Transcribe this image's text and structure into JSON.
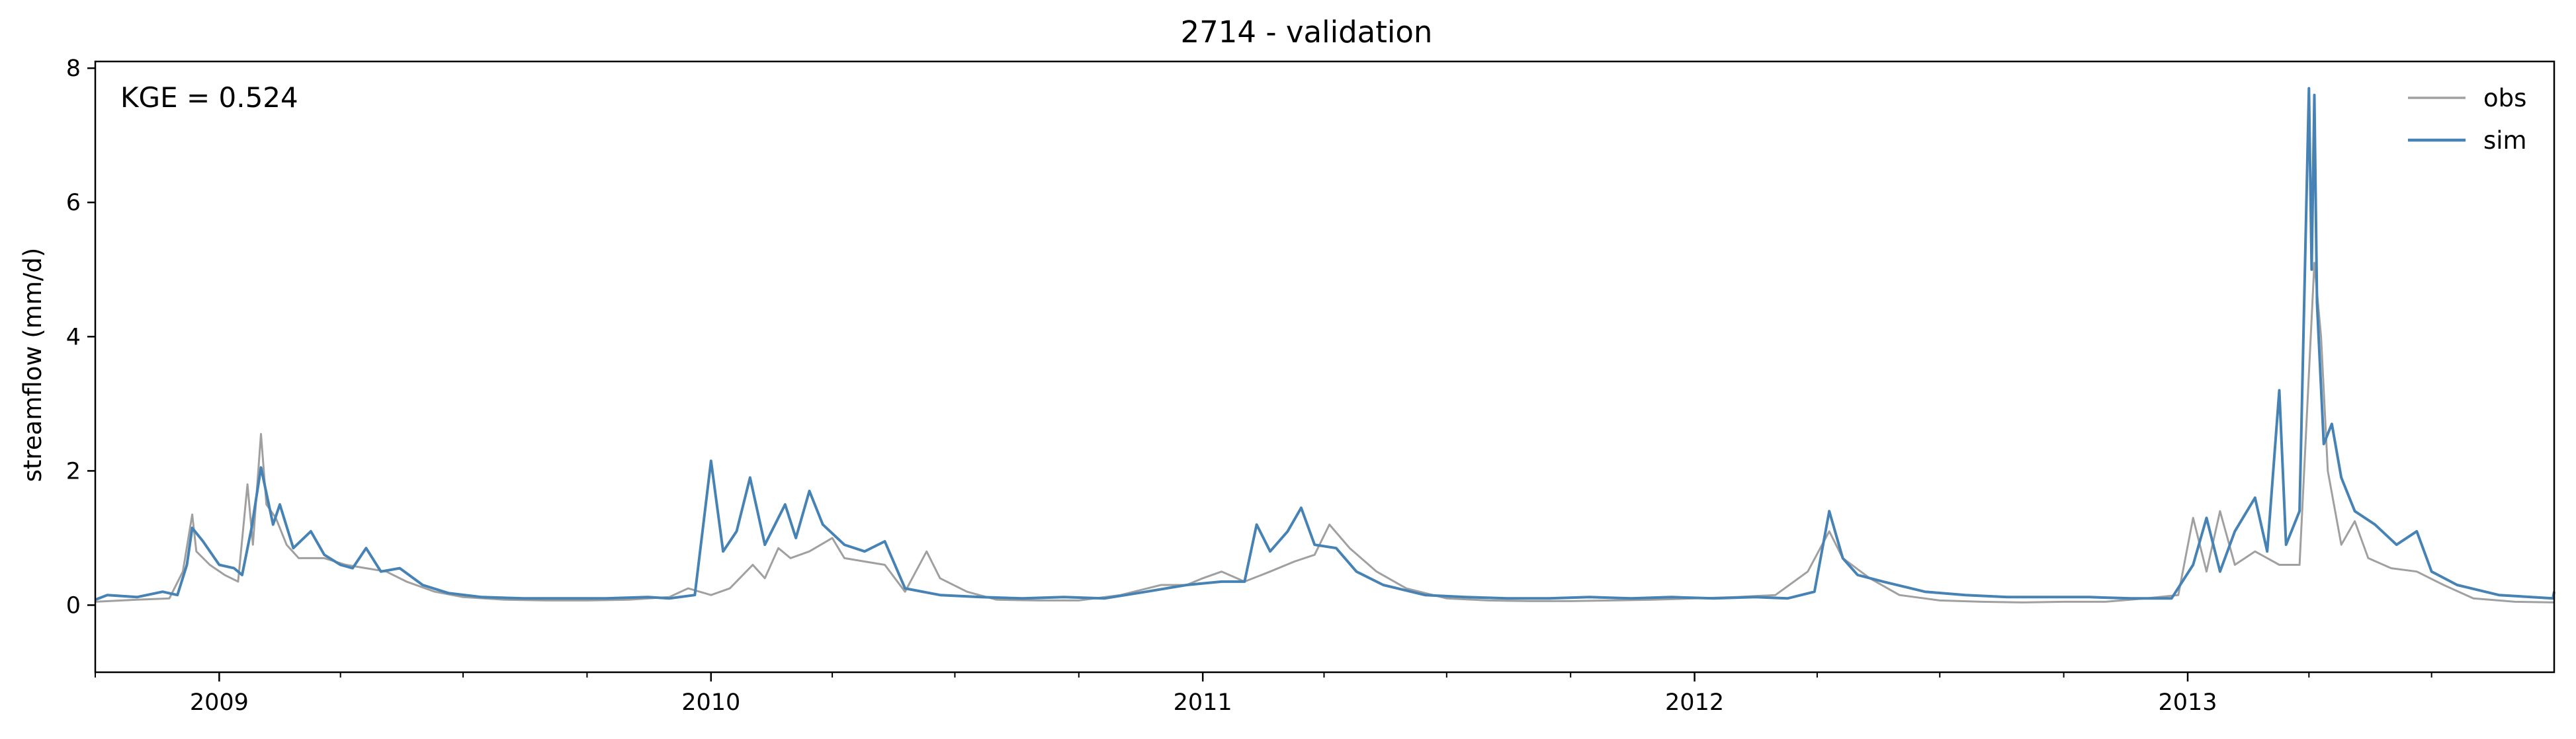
{
  "chart_data": {
    "type": "line",
    "title": "2714 - validation",
    "xlabel": "",
    "ylabel": "streamflow (mm/d)",
    "xlim": [
      "2008-10-01",
      "2013-09-30"
    ],
    "ylim": [
      -1,
      8.1
    ],
    "yticks": [
      0,
      2,
      4,
      6,
      8
    ],
    "xtick_labels": [
      "2009",
      "2010",
      "2011",
      "2012",
      "2013"
    ],
    "xtick_dates": [
      "2009-01-01",
      "2010-01-01",
      "2011-01-01",
      "2012-01-01",
      "2013-01-01"
    ],
    "minor_xtick_months": [
      4,
      7,
      10
    ],
    "grid": false,
    "legend_position": "top-right",
    "annotation": "KGE = 0.524",
    "colors": {
      "obs": "#a0a0a0",
      "sim": "#4682b4"
    },
    "series": [
      {
        "name": "obs",
        "color": "#a0a0a0",
        "points": [
          [
            "2008-10-01",
            0.05
          ],
          [
            "2008-11-01",
            0.08
          ],
          [
            "2008-11-25",
            0.1
          ],
          [
            "2008-12-05",
            0.5
          ],
          [
            "2008-12-12",
            1.35
          ],
          [
            "2008-12-15",
            0.8
          ],
          [
            "2008-12-25",
            0.6
          ],
          [
            "2009-01-05",
            0.45
          ],
          [
            "2009-01-15",
            0.35
          ],
          [
            "2009-01-22",
            1.8
          ],
          [
            "2009-01-26",
            0.9
          ],
          [
            "2009-02-01",
            2.55
          ],
          [
            "2009-02-05",
            1.5
          ],
          [
            "2009-02-12",
            1.3
          ],
          [
            "2009-02-20",
            0.9
          ],
          [
            "2009-03-01",
            0.7
          ],
          [
            "2009-03-20",
            0.7
          ],
          [
            "2009-04-05",
            0.6
          ],
          [
            "2009-04-20",
            0.55
          ],
          [
            "2009-05-05",
            0.5
          ],
          [
            "2009-05-20",
            0.35
          ],
          [
            "2009-06-10",
            0.2
          ],
          [
            "2009-07-01",
            0.12
          ],
          [
            "2009-08-01",
            0.08
          ],
          [
            "2009-09-01",
            0.07
          ],
          [
            "2009-10-01",
            0.07
          ],
          [
            "2009-11-01",
            0.08
          ],
          [
            "2009-12-01",
            0.12
          ],
          [
            "2009-12-15",
            0.25
          ],
          [
            "2010-01-01",
            0.15
          ],
          [
            "2010-01-15",
            0.25
          ],
          [
            "2010-02-01",
            0.6
          ],
          [
            "2010-02-10",
            0.4
          ],
          [
            "2010-02-20",
            0.85
          ],
          [
            "2010-03-01",
            0.7
          ],
          [
            "2010-03-15",
            0.8
          ],
          [
            "2010-04-01",
            1.0
          ],
          [
            "2010-04-10",
            0.7
          ],
          [
            "2010-04-25",
            0.65
          ],
          [
            "2010-05-10",
            0.6
          ],
          [
            "2010-05-25",
            0.2
          ],
          [
            "2010-06-10",
            0.8
          ],
          [
            "2010-06-20",
            0.4
          ],
          [
            "2010-07-10",
            0.2
          ],
          [
            "2010-08-01",
            0.08
          ],
          [
            "2010-09-01",
            0.07
          ],
          [
            "2010-10-01",
            0.07
          ],
          [
            "2010-11-01",
            0.15
          ],
          [
            "2010-12-01",
            0.3
          ],
          [
            "2010-12-20",
            0.3
          ],
          [
            "2011-01-01",
            0.4
          ],
          [
            "2011-01-15",
            0.5
          ],
          [
            "2011-02-01",
            0.35
          ],
          [
            "2011-02-20",
            0.5
          ],
          [
            "2011-03-10",
            0.65
          ],
          [
            "2011-03-25",
            0.75
          ],
          [
            "2011-04-05",
            1.2
          ],
          [
            "2011-04-20",
            0.85
          ],
          [
            "2011-05-10",
            0.5
          ],
          [
            "2011-06-01",
            0.25
          ],
          [
            "2011-07-01",
            0.1
          ],
          [
            "2011-08-01",
            0.07
          ],
          [
            "2011-09-01",
            0.06
          ],
          [
            "2011-10-01",
            0.06
          ],
          [
            "2011-11-01",
            0.07
          ],
          [
            "2011-12-01",
            0.08
          ],
          [
            "2012-01-01",
            0.1
          ],
          [
            "2012-02-01",
            0.12
          ],
          [
            "2012-03-01",
            0.15
          ],
          [
            "2012-03-25",
            0.5
          ],
          [
            "2012-04-10",
            1.1
          ],
          [
            "2012-04-20",
            0.7
          ],
          [
            "2012-05-10",
            0.4
          ],
          [
            "2012-06-01",
            0.15
          ],
          [
            "2012-07-01",
            0.07
          ],
          [
            "2012-08-01",
            0.05
          ],
          [
            "2012-09-01",
            0.04
          ],
          [
            "2012-10-01",
            0.05
          ],
          [
            "2012-11-01",
            0.05
          ],
          [
            "2012-12-01",
            0.1
          ],
          [
            "2012-12-25",
            0.15
          ],
          [
            "2013-01-05",
            1.3
          ],
          [
            "2013-01-15",
            0.5
          ],
          [
            "2013-01-25",
            1.4
          ],
          [
            "2013-02-05",
            0.6
          ],
          [
            "2013-02-20",
            0.8
          ],
          [
            "2013-03-10",
            0.6
          ],
          [
            "2013-03-25",
            0.6
          ],
          [
            "2013-04-05",
            5.1
          ],
          [
            "2013-04-10",
            4.0
          ],
          [
            "2013-04-15",
            2.0
          ],
          [
            "2013-04-25",
            0.9
          ],
          [
            "2013-05-05",
            1.25
          ],
          [
            "2013-05-15",
            0.7
          ],
          [
            "2013-06-01",
            0.55
          ],
          [
            "2013-06-20",
            0.5
          ],
          [
            "2013-07-10",
            0.3
          ],
          [
            "2013-08-01",
            0.1
          ],
          [
            "2013-09-01",
            0.05
          ],
          [
            "2013-09-30",
            0.04
          ]
        ]
      },
      {
        "name": "sim",
        "color": "#4682b4",
        "points": [
          [
            "2008-10-01",
            0.08
          ],
          [
            "2008-10-10",
            0.15
          ],
          [
            "2008-11-01",
            0.12
          ],
          [
            "2008-11-20",
            0.2
          ],
          [
            "2008-12-01",
            0.15
          ],
          [
            "2008-12-08",
            0.6
          ],
          [
            "2008-12-12",
            1.15
          ],
          [
            "2008-12-20",
            0.95
          ],
          [
            "2009-01-01",
            0.6
          ],
          [
            "2009-01-12",
            0.55
          ],
          [
            "2009-01-18",
            0.45
          ],
          [
            "2009-01-25",
            1.15
          ],
          [
            "2009-02-01",
            2.05
          ],
          [
            "2009-02-10",
            1.2
          ],
          [
            "2009-02-15",
            1.5
          ],
          [
            "2009-02-25",
            0.85
          ],
          [
            "2009-03-10",
            1.1
          ],
          [
            "2009-03-20",
            0.75
          ],
          [
            "2009-04-01",
            0.6
          ],
          [
            "2009-04-10",
            0.55
          ],
          [
            "2009-04-20",
            0.85
          ],
          [
            "2009-05-01",
            0.5
          ],
          [
            "2009-05-15",
            0.55
          ],
          [
            "2009-06-01",
            0.3
          ],
          [
            "2009-06-20",
            0.18
          ],
          [
            "2009-07-15",
            0.12
          ],
          [
            "2009-08-15",
            0.1
          ],
          [
            "2009-09-15",
            0.1
          ],
          [
            "2009-10-15",
            0.1
          ],
          [
            "2009-11-15",
            0.12
          ],
          [
            "2009-12-01",
            0.1
          ],
          [
            "2009-12-20",
            0.15
          ],
          [
            "2010-01-01",
            2.15
          ],
          [
            "2010-01-10",
            0.8
          ],
          [
            "2010-01-20",
            1.1
          ],
          [
            "2010-01-30",
            1.9
          ],
          [
            "2010-02-10",
            0.9
          ],
          [
            "2010-02-25",
            1.5
          ],
          [
            "2010-03-05",
            1.0
          ],
          [
            "2010-03-15",
            1.7
          ],
          [
            "2010-03-25",
            1.2
          ],
          [
            "2010-04-10",
            0.9
          ],
          [
            "2010-04-25",
            0.8
          ],
          [
            "2010-05-10",
            0.95
          ],
          [
            "2010-05-25",
            0.25
          ],
          [
            "2010-06-20",
            0.15
          ],
          [
            "2010-07-20",
            0.12
          ],
          [
            "2010-08-20",
            0.1
          ],
          [
            "2010-09-20",
            0.12
          ],
          [
            "2010-10-20",
            0.1
          ],
          [
            "2010-11-20",
            0.2
          ],
          [
            "2010-12-20",
            0.3
          ],
          [
            "2011-01-15",
            0.35
          ],
          [
            "2011-02-01",
            0.35
          ],
          [
            "2011-02-10",
            1.2
          ],
          [
            "2011-02-20",
            0.8
          ],
          [
            "2011-03-05",
            1.1
          ],
          [
            "2011-03-15",
            1.45
          ],
          [
            "2011-03-25",
            0.9
          ],
          [
            "2011-04-10",
            0.85
          ],
          [
            "2011-04-25",
            0.5
          ],
          [
            "2011-05-15",
            0.3
          ],
          [
            "2011-06-15",
            0.15
          ],
          [
            "2011-07-15",
            0.12
          ],
          [
            "2011-08-15",
            0.1
          ],
          [
            "2011-09-15",
            0.1
          ],
          [
            "2011-10-15",
            0.12
          ],
          [
            "2011-11-15",
            0.1
          ],
          [
            "2011-12-15",
            0.12
          ],
          [
            "2012-01-15",
            0.1
          ],
          [
            "2012-02-15",
            0.12
          ],
          [
            "2012-03-10",
            0.1
          ],
          [
            "2012-03-30",
            0.2
          ],
          [
            "2012-04-10",
            1.4
          ],
          [
            "2012-04-20",
            0.7
          ],
          [
            "2012-05-01",
            0.45
          ],
          [
            "2012-05-20",
            0.35
          ],
          [
            "2012-06-20",
            0.2
          ],
          [
            "2012-07-20",
            0.15
          ],
          [
            "2012-08-20",
            0.12
          ],
          [
            "2012-09-20",
            0.12
          ],
          [
            "2012-10-20",
            0.12
          ],
          [
            "2012-11-20",
            0.1
          ],
          [
            "2012-12-20",
            0.1
          ],
          [
            "2013-01-05",
            0.6
          ],
          [
            "2013-01-15",
            1.3
          ],
          [
            "2013-01-25",
            0.5
          ],
          [
            "2013-02-05",
            1.1
          ],
          [
            "2013-02-20",
            1.6
          ],
          [
            "2013-03-01",
            0.8
          ],
          [
            "2013-03-10",
            3.2
          ],
          [
            "2013-03-15",
            0.9
          ],
          [
            "2013-03-25",
            1.4
          ],
          [
            "2013-04-01",
            7.7
          ],
          [
            "2013-04-03",
            5.0
          ],
          [
            "2013-04-05",
            7.6
          ],
          [
            "2013-04-07",
            4.5
          ],
          [
            "2013-04-12",
            2.4
          ],
          [
            "2013-04-18",
            2.7
          ],
          [
            "2013-04-25",
            1.9
          ],
          [
            "2013-05-05",
            1.4
          ],
          [
            "2013-05-20",
            1.2
          ],
          [
            "2013-06-05",
            0.9
          ],
          [
            "2013-06-20",
            1.1
          ],
          [
            "2013-07-01",
            0.5
          ],
          [
            "2013-07-20",
            0.3
          ],
          [
            "2013-08-20",
            0.15
          ],
          [
            "2013-09-29",
            0.1
          ],
          [
            "2013-09-30",
            0.2
          ]
        ]
      }
    ]
  }
}
